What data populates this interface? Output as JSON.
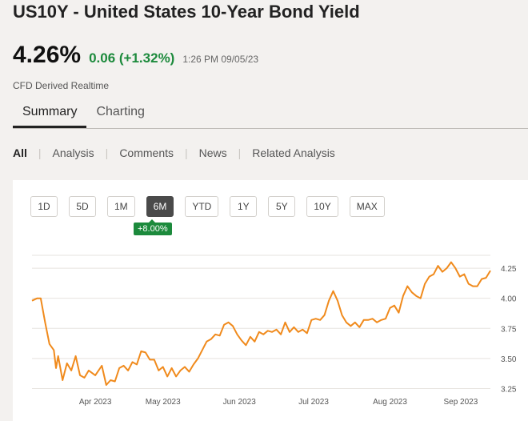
{
  "header": {
    "title": "US10Y  - United States 10-Year Bond Yield",
    "price": "4.26%",
    "change": "0.06 (+1.32%)",
    "timestamp": "1:26 PM 09/05/23",
    "source_note": "CFD Derived Realtime"
  },
  "tabs": [
    {
      "label": "Summary",
      "active": true
    },
    {
      "label": "Charting",
      "active": false
    }
  ],
  "filters": [
    {
      "label": "All",
      "active": true
    },
    {
      "label": "Analysis"
    },
    {
      "label": "Comments"
    },
    {
      "label": "News"
    },
    {
      "label": "Related Analysis"
    }
  ],
  "range_buttons": [
    {
      "label": "1D"
    },
    {
      "label": "5D"
    },
    {
      "label": "1M"
    },
    {
      "label": "6M",
      "active": true
    },
    {
      "label": "YTD"
    },
    {
      "label": "1Y"
    },
    {
      "label": "5Y"
    },
    {
      "label": "10Y"
    },
    {
      "label": "MAX"
    }
  ],
  "range_change_badge": "+8.00%",
  "colors": {
    "line": "#f08a1c",
    "positive": "#1c8a3c",
    "active_button": "#4a4a4a"
  },
  "chart_data": {
    "type": "line",
    "ylim": [
      3.2,
      4.45
    ],
    "y_ticks": [
      3.25,
      3.5,
      3.75,
      4.0,
      4.25
    ],
    "y_tick_labels": [
      "3.25",
      "3.50",
      "3.75",
      "4.00",
      "4.25"
    ],
    "x_ticks": [
      {
        "label": "Apr 2023",
        "t": 0.145
      },
      {
        "label": "May 2023",
        "t": 0.3
      },
      {
        "label": "Jun 2023",
        "t": 0.475
      },
      {
        "label": "Jul 2023",
        "t": 0.645
      },
      {
        "label": "Aug 2023",
        "t": 0.82
      },
      {
        "label": "Sep 2023",
        "t": 0.982
      }
    ],
    "grid": true,
    "series": [
      {
        "values": [
          [
            0.0,
            3.98
          ],
          [
            0.012,
            4.0
          ],
          [
            0.02,
            4.0
          ],
          [
            0.03,
            3.8
          ],
          [
            0.04,
            3.62
          ],
          [
            0.05,
            3.57
          ],
          [
            0.055,
            3.42
          ],
          [
            0.06,
            3.52
          ],
          [
            0.07,
            3.32
          ],
          [
            0.08,
            3.46
          ],
          [
            0.09,
            3.4
          ],
          [
            0.1,
            3.52
          ],
          [
            0.11,
            3.36
          ],
          [
            0.12,
            3.34
          ],
          [
            0.13,
            3.4
          ],
          [
            0.145,
            3.36
          ],
          [
            0.16,
            3.44
          ],
          [
            0.17,
            3.28
          ],
          [
            0.18,
            3.32
          ],
          [
            0.19,
            3.31
          ],
          [
            0.2,
            3.42
          ],
          [
            0.21,
            3.44
          ],
          [
            0.22,
            3.4
          ],
          [
            0.23,
            3.47
          ],
          [
            0.24,
            3.45
          ],
          [
            0.25,
            3.56
          ],
          [
            0.26,
            3.55
          ],
          [
            0.27,
            3.49
          ],
          [
            0.28,
            3.49
          ],
          [
            0.29,
            3.4
          ],
          [
            0.3,
            3.43
          ],
          [
            0.31,
            3.35
          ],
          [
            0.32,
            3.42
          ],
          [
            0.33,
            3.35
          ],
          [
            0.34,
            3.4
          ],
          [
            0.35,
            3.43
          ],
          [
            0.36,
            3.39
          ],
          [
            0.37,
            3.45
          ],
          [
            0.38,
            3.5
          ],
          [
            0.39,
            3.57
          ],
          [
            0.4,
            3.64
          ],
          [
            0.41,
            3.66
          ],
          [
            0.42,
            3.7
          ],
          [
            0.43,
            3.69
          ],
          [
            0.44,
            3.78
          ],
          [
            0.45,
            3.8
          ],
          [
            0.46,
            3.77
          ],
          [
            0.47,
            3.7
          ],
          [
            0.48,
            3.65
          ],
          [
            0.49,
            3.61
          ],
          [
            0.5,
            3.68
          ],
          [
            0.51,
            3.64
          ],
          [
            0.52,
            3.72
          ],
          [
            0.53,
            3.7
          ],
          [
            0.54,
            3.73
          ],
          [
            0.55,
            3.72
          ],
          [
            0.56,
            3.74
          ],
          [
            0.57,
            3.7
          ],
          [
            0.58,
            3.8
          ],
          [
            0.59,
            3.72
          ],
          [
            0.6,
            3.76
          ],
          [
            0.61,
            3.72
          ],
          [
            0.62,
            3.74
          ],
          [
            0.63,
            3.71
          ],
          [
            0.64,
            3.82
          ],
          [
            0.65,
            3.83
          ],
          [
            0.66,
            3.82
          ],
          [
            0.67,
            3.86
          ],
          [
            0.68,
            3.98
          ],
          [
            0.69,
            4.06
          ],
          [
            0.7,
            3.98
          ],
          [
            0.71,
            3.86
          ],
          [
            0.72,
            3.8
          ],
          [
            0.73,
            3.77
          ],
          [
            0.74,
            3.8
          ],
          [
            0.75,
            3.76
          ],
          [
            0.76,
            3.82
          ],
          [
            0.77,
            3.82
          ],
          [
            0.78,
            3.83
          ],
          [
            0.79,
            3.8
          ],
          [
            0.8,
            3.82
          ],
          [
            0.81,
            3.83
          ],
          [
            0.82,
            3.92
          ],
          [
            0.83,
            3.94
          ],
          [
            0.84,
            3.88
          ],
          [
            0.85,
            4.02
          ],
          [
            0.86,
            4.1
          ],
          [
            0.87,
            4.05
          ],
          [
            0.88,
            4.02
          ],
          [
            0.89,
            4.0
          ],
          [
            0.9,
            4.12
          ],
          [
            0.91,
            4.18
          ],
          [
            0.92,
            4.2
          ],
          [
            0.93,
            4.27
          ],
          [
            0.94,
            4.22
          ],
          [
            0.95,
            4.25
          ],
          [
            0.96,
            4.3
          ],
          [
            0.97,
            4.25
          ],
          [
            0.98,
            4.18
          ],
          [
            0.99,
            4.2
          ],
          [
            1.0,
            4.12
          ],
          [
            1.01,
            4.1
          ],
          [
            1.02,
            4.1
          ],
          [
            1.03,
            4.16
          ],
          [
            1.04,
            4.17
          ],
          [
            1.05,
            4.23
          ]
        ]
      }
    ]
  }
}
